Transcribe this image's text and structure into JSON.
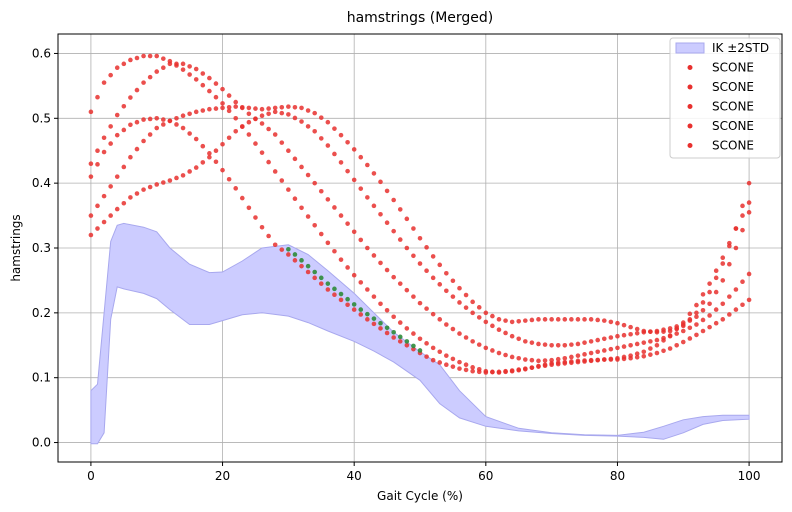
{
  "chart_data": {
    "type": "scatter",
    "title": "hamstrings (Merged)",
    "xlabel": "Gait Cycle (%)",
    "ylabel": "hamstrings",
    "xlim": [
      -5,
      105
    ],
    "ylim": [
      -0.03,
      0.63
    ],
    "xticks": [
      "0",
      "20",
      "40",
      "60",
      "80",
      "100"
    ],
    "yticks": [
      "0.0",
      "0.1",
      "0.2",
      "0.3",
      "0.4",
      "0.5",
      "0.6"
    ],
    "grid": true,
    "legend_position": "top-right",
    "legend": [
      "IK ±2STD",
      "SCONE",
      "SCONE",
      "SCONE",
      "SCONE",
      "SCONE"
    ],
    "colors": {
      "band_fill": "#ccccff",
      "band_edge": "#a8a8ee",
      "scone": "#e8302e",
      "highlight": "#2e8b3a"
    },
    "band": {
      "name": "IK ±2STD",
      "x": [
        0,
        1,
        2,
        3,
        4,
        5,
        8,
        10,
        12,
        15,
        18,
        20,
        23,
        26,
        30,
        33,
        36,
        40,
        43,
        46,
        50,
        53,
        56,
        60,
        65,
        70,
        75,
        80,
        84,
        87,
        90,
        93,
        96,
        100
      ],
      "upper": [
        0.08,
        0.09,
        0.2,
        0.31,
        0.335,
        0.338,
        0.332,
        0.325,
        0.3,
        0.275,
        0.262,
        0.263,
        0.28,
        0.3,
        0.305,
        0.29,
        0.265,
        0.23,
        0.2,
        0.17,
        0.14,
        0.12,
        0.08,
        0.04,
        0.022,
        0.015,
        0.012,
        0.011,
        0.016,
        0.025,
        0.035,
        0.04,
        0.042,
        0.042
      ],
      "lower": [
        -0.002,
        -0.002,
        0.015,
        0.19,
        0.24,
        0.237,
        0.23,
        0.222,
        0.205,
        0.182,
        0.182,
        0.188,
        0.197,
        0.2,
        0.195,
        0.185,
        0.172,
        0.156,
        0.141,
        0.124,
        0.096,
        0.06,
        0.038,
        0.025,
        0.018,
        0.014,
        0.011,
        0.01,
        0.008,
        0.005,
        0.015,
        0.028,
        0.034,
        0.036
      ]
    },
    "series": [
      {
        "name": "SCONE",
        "x": [
          0,
          2,
          4,
          6,
          8,
          10,
          12,
          14,
          16,
          18,
          20,
          22,
          24,
          26,
          28,
          30,
          32,
          34,
          36,
          38,
          40,
          42,
          44,
          46,
          48,
          50,
          52,
          54,
          56,
          58,
          60,
          62,
          64,
          66,
          68,
          70,
          72,
          74,
          76,
          78,
          80,
          82,
          84,
          86,
          88,
          90,
          92,
          94,
          96,
          98,
          100
        ],
        "y": [
          0.51,
          0.555,
          0.578,
          0.59,
          0.596,
          0.596,
          0.588,
          0.575,
          0.56,
          0.542,
          0.523,
          0.5,
          0.475,
          0.447,
          0.418,
          0.39,
          0.362,
          0.335,
          0.308,
          0.282,
          0.258,
          0.236,
          0.214,
          0.194,
          0.176,
          0.16,
          0.146,
          0.134,
          0.124,
          0.116,
          0.11,
          0.108,
          0.11,
          0.113,
          0.118,
          0.122,
          0.124,
          0.126,
          0.127,
          0.128,
          0.128,
          0.13,
          0.133,
          0.138,
          0.145,
          0.155,
          0.166,
          0.178,
          0.19,
          0.205,
          0.22
        ]
      },
      {
        "name": "SCONE",
        "x": [
          0,
          2,
          4,
          6,
          8,
          10,
          12,
          14,
          16,
          18,
          20,
          22,
          24,
          26,
          28,
          30,
          32,
          34,
          36,
          38,
          40,
          42,
          44,
          46,
          48,
          50,
          52,
          54,
          56,
          58,
          60,
          62,
          64,
          66,
          68,
          70,
          72,
          74,
          76,
          78,
          80,
          82,
          84,
          86,
          88,
          90,
          92,
          94,
          96,
          98,
          100
        ],
        "y": [
          0.43,
          0.47,
          0.505,
          0.532,
          0.555,
          0.572,
          0.584,
          0.584,
          0.576,
          0.562,
          0.545,
          0.525,
          0.507,
          0.492,
          0.475,
          0.45,
          0.425,
          0.4,
          0.375,
          0.35,
          0.325,
          0.3,
          0.277,
          0.255,
          0.235,
          0.215,
          0.198,
          0.182,
          0.168,
          0.156,
          0.146,
          0.138,
          0.132,
          0.128,
          0.126,
          0.127,
          0.13,
          0.134,
          0.138,
          0.142,
          0.146,
          0.15,
          0.154,
          0.158,
          0.164,
          0.172,
          0.182,
          0.196,
          0.214,
          0.236,
          0.26
        ]
      },
      {
        "name": "SCONE",
        "x": [
          0,
          2,
          4,
          6,
          8,
          10,
          12,
          14,
          16,
          18,
          20,
          22,
          24,
          26,
          28,
          30,
          32,
          34,
          36,
          38,
          40,
          42,
          44,
          46,
          48,
          50,
          52,
          54,
          56,
          58,
          60,
          62,
          64,
          66,
          68,
          70,
          72,
          74,
          76,
          78,
          80,
          82,
          84,
          86,
          88,
          90,
          92,
          94,
          96,
          98,
          100
        ],
        "y": [
          0.41,
          0.448,
          0.474,
          0.49,
          0.498,
          0.5,
          0.496,
          0.485,
          0.468,
          0.446,
          0.42,
          0.392,
          0.362,
          0.332,
          0.305,
          0.29,
          0.272,
          0.254,
          0.236,
          0.22,
          0.205,
          0.19,
          0.176,
          0.162,
          0.15,
          0.138,
          0.127,
          0.12,
          0.114,
          0.11,
          0.108,
          0.109,
          0.111,
          0.114,
          0.117,
          0.12,
          0.122,
          0.124,
          0.126,
          0.128,
          0.13,
          0.134,
          0.14,
          0.15,
          0.165,
          0.185,
          0.212,
          0.245,
          0.285,
          0.33,
          0.37
        ]
      },
      {
        "name": "SCONE",
        "x": [
          0,
          2,
          4,
          6,
          8,
          10,
          12,
          14,
          16,
          18,
          20,
          22,
          24,
          26,
          28,
          30,
          32,
          34,
          36,
          38,
          40,
          42,
          44,
          46,
          48,
          50,
          52,
          54,
          56,
          58,
          60,
          62,
          64,
          66,
          68,
          70,
          72,
          74,
          76,
          78,
          80,
          82,
          84,
          86,
          88,
          90,
          92,
          94,
          96,
          98,
          100
        ],
        "y": [
          0.35,
          0.38,
          0.41,
          0.44,
          0.465,
          0.485,
          0.496,
          0.504,
          0.51,
          0.514,
          0.516,
          0.518,
          0.516,
          0.514,
          0.516,
          0.518,
          0.516,
          0.508,
          0.494,
          0.474,
          0.452,
          0.428,
          0.402,
          0.374,
          0.345,
          0.315,
          0.287,
          0.261,
          0.238,
          0.217,
          0.2,
          0.19,
          0.186,
          0.188,
          0.19,
          0.19,
          0.19,
          0.19,
          0.19,
          0.188,
          0.184,
          0.178,
          0.172,
          0.17,
          0.172,
          0.18,
          0.2,
          0.232,
          0.276,
          0.33,
          0.4
        ]
      },
      {
        "name": "SCONE",
        "x": [
          0,
          2,
          4,
          6,
          8,
          10,
          12,
          14,
          16,
          18,
          20,
          22,
          24,
          26,
          28,
          30,
          32,
          34,
          36,
          38,
          40,
          42,
          44,
          46,
          48,
          50,
          52,
          54,
          56,
          58,
          60,
          62,
          64,
          66,
          68,
          70,
          72,
          74,
          76,
          78,
          80,
          82,
          84,
          86,
          88,
          90,
          92,
          94,
          96,
          98,
          100
        ],
        "y": [
          0.32,
          0.34,
          0.36,
          0.378,
          0.39,
          0.398,
          0.404,
          0.412,
          0.424,
          0.44,
          0.46,
          0.48,
          0.494,
          0.504,
          0.51,
          0.506,
          0.495,
          0.48,
          0.458,
          0.432,
          0.405,
          0.378,
          0.352,
          0.326,
          0.3,
          0.276,
          0.254,
          0.234,
          0.216,
          0.2,
          0.186,
          0.174,
          0.164,
          0.156,
          0.152,
          0.15,
          0.15,
          0.152,
          0.156,
          0.16,
          0.164,
          0.167,
          0.17,
          0.172,
          0.176,
          0.182,
          0.194,
          0.214,
          0.25,
          0.3,
          0.355
        ]
      }
    ],
    "highlight": {
      "x": [
        30,
        31,
        32,
        33,
        34,
        35,
        36,
        37,
        38,
        39,
        40,
        41,
        42,
        43,
        44,
        45,
        46,
        47,
        48,
        49,
        50
      ],
      "y": [
        0.298,
        0.29,
        0.281,
        0.272,
        0.263,
        0.254,
        0.245,
        0.237,
        0.229,
        0.221,
        0.213,
        0.205,
        0.198,
        0.191,
        0.184,
        0.177,
        0.17,
        0.163,
        0.156,
        0.149,
        0.142
      ]
    }
  }
}
